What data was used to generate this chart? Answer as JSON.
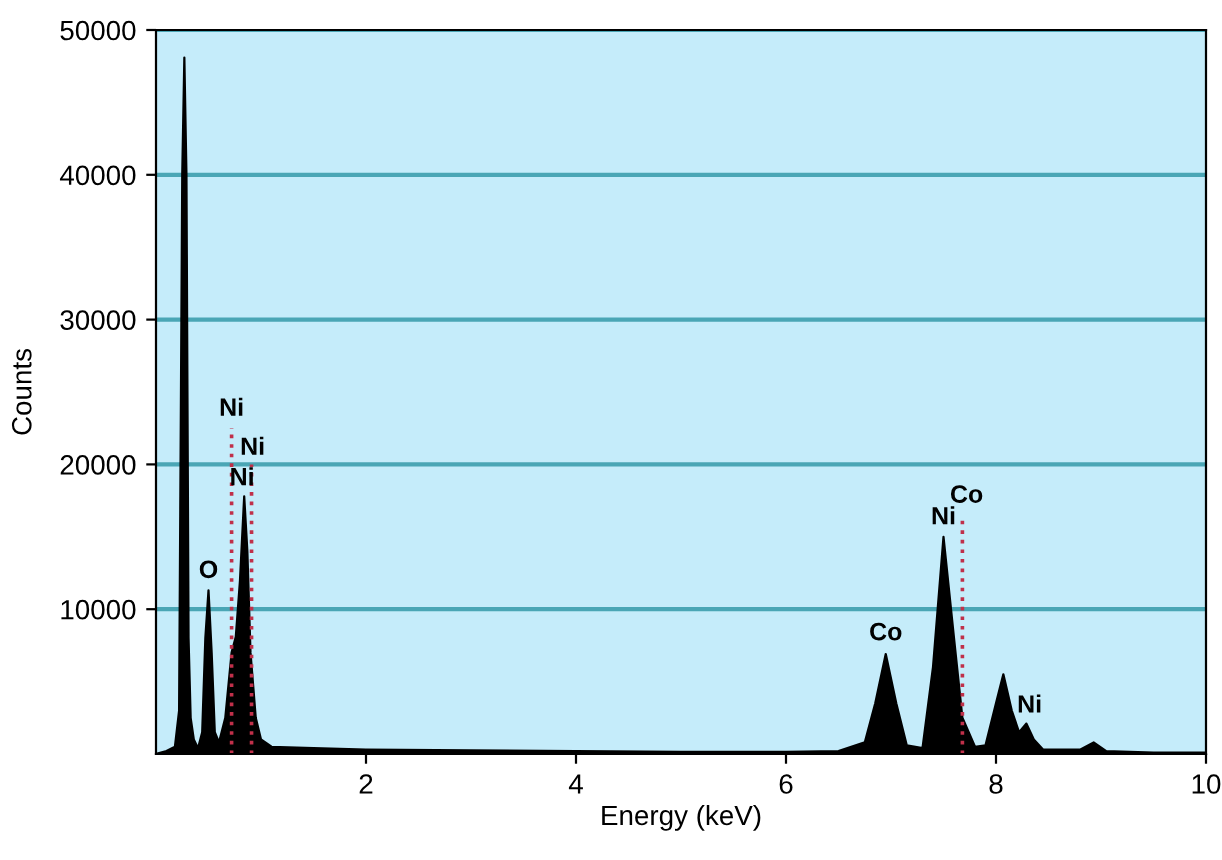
{
  "chart_data": {
    "type": "area",
    "xlabel": "Energy (keV)",
    "ylabel": "Counts",
    "xlim": [
      0,
      10
    ],
    "ylim": [
      0,
      50000
    ],
    "xticks": [
      2,
      4,
      6,
      8,
      10
    ],
    "yticks": [
      10000,
      20000,
      30000,
      40000,
      50000
    ],
    "grid": "y",
    "series": [
      {
        "color": "#000000",
        "x": [
          0,
          0.1,
          0.18,
          0.22,
          0.25,
          0.27,
          0.29,
          0.31,
          0.33,
          0.36,
          0.4,
          0.44,
          0.47,
          0.5,
          0.53,
          0.56,
          0.6,
          0.66,
          0.72,
          0.76,
          0.8,
          0.84,
          0.87,
          0.9,
          0.95,
          1.0,
          1.1,
          1.5,
          2.0,
          3,
          4,
          5,
          6,
          6.5,
          6.75,
          6.85,
          6.95,
          7.05,
          7.15,
          7.3,
          7.4,
          7.5,
          7.6,
          7.68,
          7.8,
          7.9,
          8.0,
          8.07,
          8.15,
          8.22,
          8.29,
          8.36,
          8.45,
          8.8,
          8.93,
          9.05,
          9.5,
          10
        ],
        "values": [
          0,
          200,
          500,
          3000,
          40000,
          48100,
          40000,
          8000,
          2500,
          1000,
          400,
          1500,
          8000,
          11300,
          7000,
          1500,
          800,
          2500,
          7000,
          8100,
          12000,
          17800,
          14000,
          7000,
          2500,
          1000,
          500,
          400,
          300,
          250,
          200,
          150,
          150,
          200,
          800,
          3500,
          6900,
          3500,
          600,
          400,
          6000,
          15000,
          8000,
          2500,
          500,
          600,
          3500,
          5500,
          3000,
          1500,
          2100,
          1000,
          300,
          300,
          800,
          200,
          100,
          100
        ]
      },
      {
        "type": "line",
        "line_style": "dotted",
        "color": "#c0304a",
        "x": [
          0.72,
          0.72
        ],
        "values": [
          0,
          22500
        ]
      },
      {
        "type": "line",
        "line_style": "dotted",
        "color": "#c0304a",
        "x": [
          0.91,
          0.91
        ],
        "values": [
          0,
          20000
        ]
      },
      {
        "type": "line",
        "line_style": "dotted",
        "color": "#c0304a",
        "x": [
          7.68,
          7.68
        ],
        "values": [
          0,
          16500
        ]
      }
    ],
    "annotations": [
      {
        "text": "Ni",
        "x": 0.72,
        "y": 23000
      },
      {
        "text": "Ni",
        "x": 0.92,
        "y": 20300
      },
      {
        "text": "Ni",
        "x": 0.82,
        "y": 18200
      },
      {
        "text": "O",
        "x": 0.5,
        "y": 11800
      },
      {
        "text": "Co",
        "x": 6.95,
        "y": 7500
      },
      {
        "text": "Ni",
        "x": 7.5,
        "y": 15500
      },
      {
        "text": "Co",
        "x": 7.72,
        "y": 17000
      },
      {
        "text": "Ni",
        "x": 8.32,
        "y": 2500
      }
    ]
  }
}
